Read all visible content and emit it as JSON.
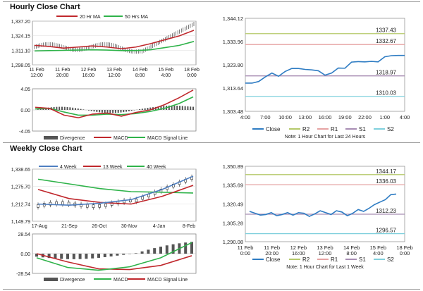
{
  "hourly": {
    "title": "Hourly Close Chart",
    "price_panel": {
      "legend": [
        "20 Hr MA",
        "50 Hrs MA"
      ],
      "yticks": [
        "1,337.20",
        "1,324.15",
        "1,311.10",
        "1,298.05"
      ],
      "xticks": [
        "11 Feb\n12:00",
        "11 Feb\n20:00",
        "12 Feb\n16:00",
        "13 Feb\n12:00",
        "14 Feb\n8:00",
        "15 Feb\n4:00",
        "18 Feb\n0:00"
      ]
    },
    "macd_panel": {
      "yticks": [
        "4.05",
        "0.00",
        "-4.05"
      ],
      "legend": [
        "Divergence",
        "MACD",
        "MACD Signal Line"
      ]
    },
    "pivot_panel": {
      "yticks": [
        "1,344.12",
        "1,333.96",
        "1,323.80",
        "1,313.64",
        "1,303.48"
      ],
      "xticks": [
        "4:00",
        "7:00",
        "10:00",
        "13:00",
        "16:00",
        "19:00",
        "22:00",
        "1:00",
        "4:00"
      ],
      "level_labels": [
        "1337.43",
        "1332.67",
        "1318.97",
        "1310.03"
      ],
      "legend": [
        "Close",
        "R2",
        "R1",
        "S1",
        "S2"
      ],
      "note": "Note: 1 Hour Chart for Last 24 Hours"
    }
  },
  "weekly": {
    "title": "Weekly Close Chart",
    "price_panel": {
      "legend": [
        "4 Week",
        "13 Week",
        "40 Week"
      ],
      "yticks": [
        "1,338.65",
        "1,275.70",
        "1,212.74",
        "1,149.79"
      ],
      "xticks": [
        "17-Aug",
        "21-Sep",
        "26-Oct",
        "30-Nov",
        "4-Jan",
        "8-Feb"
      ]
    },
    "macd_panel": {
      "yticks": [
        "28.54",
        "0.00",
        "-28.54"
      ],
      "legend": [
        "Divergence",
        "MACD",
        "MACD Signal Line"
      ]
    },
    "pivot_panel": {
      "yticks": [
        "1,350.89",
        "1,335.69",
        "1,320.49",
        "1,305.28",
        "1,290.08"
      ],
      "xticks": [
        "11 Feb\n0:00",
        "11 Feb\n20:00",
        "12 Feb\n16:00",
        "13 Feb\n12:00",
        "14 Feb\n8:00",
        "15 Feb\n4:00",
        "18 Feb\n0:00"
      ],
      "level_labels": [
        "1344.17",
        "1336.03",
        "1312.23",
        "1296.57"
      ],
      "legend": [
        "Close",
        "R2",
        "R1",
        "S1",
        "S2"
      ],
      "note": "Note: 1 Hour Chart for Last 1 Week"
    }
  },
  "colors": {
    "ma_short": "#c0282d",
    "ma_long": "#2fb34a",
    "ma_4wk": "#4f7fc1",
    "r2": "#b5c96a",
    "r1": "#e6a3a3",
    "s1": "#a88db3",
    "s2": "#7fd0dd",
    "close": "#2e7cc3",
    "divergence": "#555555"
  },
  "chart_data": [
    {
      "type": "line",
      "title": "Hourly Close Chart",
      "series": [
        {
          "name": "20 Hr MA",
          "values": [
            1315.5,
            1314.5,
            1313.0,
            1314.0,
            1315.0,
            1314.0,
            1312.5,
            1314.0,
            1317.0,
            1320.5,
            1324.0,
            1329.0
          ]
        },
        {
          "name": "50 Hrs MA",
          "values": [
            1310.5,
            1310.8,
            1311.0,
            1311.3,
            1311.5,
            1311.3,
            1310.8,
            1310.8,
            1311.5,
            1313.5,
            1315.5,
            1319.0
          ]
        }
      ],
      "ylim": [
        1298.05,
        1337.2
      ]
    },
    {
      "type": "line",
      "title": "Hourly MACD",
      "series": [
        {
          "name": "MACD",
          "values": [
            0.5,
            0.3,
            -1.0,
            -1.5,
            -0.8,
            -0.6,
            -1.2,
            -0.5,
            0.0,
            1.0,
            2.3,
            3.8
          ]
        },
        {
          "name": "MACD Signal Line",
          "values": [
            0.2,
            0.3,
            -0.4,
            -1.0,
            -1.0,
            -0.8,
            -0.9,
            -0.7,
            -0.3,
            0.3,
            1.2,
            2.5
          ]
        }
      ],
      "ylim": [
        -4.05,
        4.05
      ]
    },
    {
      "type": "line",
      "title": "1 Hour Chart for Last 24 Hours",
      "x": [
        "4:00",
        "5:00",
        "6:00",
        "7:00",
        "8:00",
        "9:00",
        "10:00",
        "11:00",
        "12:00",
        "13:00",
        "14:00",
        "15:00",
        "16:00",
        "17:00",
        "18:00",
        "19:00",
        "20:00",
        "21:00",
        "22:00",
        "23:00",
        "0:00",
        "1:00",
        "2:00",
        "3:00",
        "4:00"
      ],
      "series": [
        {
          "name": "Close",
          "values": [
            1315.8,
            1315.8,
            1316.5,
            1318.5,
            1320.2,
            1318.8,
            1320.9,
            1322.2,
            1322.2,
            1321.8,
            1321.6,
            1321.2,
            1319.3,
            1320.2,
            1322.4,
            1322.3,
            1325.0,
            1325.2,
            1325.1,
            1325.3,
            1325.1,
            1327.3,
            1327.8,
            1327.9,
            1327.9
          ]
        }
      ],
      "levels": {
        "R2": 1337.43,
        "R1": 1332.67,
        "S1": 1318.97,
        "S2": 1310.03
      },
      "ylim": [
        1303.48,
        1344.12
      ]
    },
    {
      "type": "line",
      "title": "Weekly Close Chart",
      "x": [
        "17-Aug",
        "21-Sep",
        "26-Oct",
        "30-Nov",
        "4-Jan",
        "8-Feb"
      ],
      "series": [
        {
          "name": "4 Week",
          "values": [
            1212.0,
            1208.0,
            1215.0,
            1228.0,
            1265.0,
            1313.0
          ]
        },
        {
          "name": "13 Week",
          "values": [
            1265.0,
            1232.0,
            1218.0,
            1212.0,
            1240.0,
            1280.0
          ]
        },
        {
          "name": "40 Week",
          "values": [
            1302.0,
            1285.0,
            1268.0,
            1257.0,
            1255.0,
            1252.0
          ]
        }
      ],
      "ylim": [
        1149.79,
        1338.65
      ]
    },
    {
      "type": "line",
      "title": "Weekly MACD",
      "series": [
        {
          "name": "MACD",
          "values": [
            -6.0,
            -20.0,
            -24.0,
            -19.0,
            -6.0,
            16.0
          ]
        },
        {
          "name": "MACD Signal Line",
          "values": [
            0.0,
            -12.0,
            -22.0,
            -23.0,
            -17.0,
            -3.0
          ]
        }
      ],
      "ylim": [
        -28.54,
        28.54
      ]
    },
    {
      "type": "line",
      "title": "1 Hour Chart for Last 1 Week",
      "series": [
        {
          "name": "Close",
          "values": [
            1314.5,
            1313.0,
            1311.5,
            1312.0,
            1313.5,
            1311.0,
            1312.0,
            1313.5,
            1311.5,
            1313.5,
            1313.0,
            1310.5,
            1312.5,
            1315.0,
            1313.5,
            1312.0,
            1315.0,
            1314.0,
            1311.0,
            1313.0,
            1316.0,
            1314.5,
            1317.0,
            1320.0,
            1322.0,
            1324.0,
            1328.0,
            1328.5
          ]
        }
      ],
      "levels": {
        "R2": 1344.17,
        "R1": 1336.03,
        "S1": 1312.23,
        "S2": 1296.57
      },
      "ylim": [
        1290.08,
        1350.89
      ]
    }
  ]
}
